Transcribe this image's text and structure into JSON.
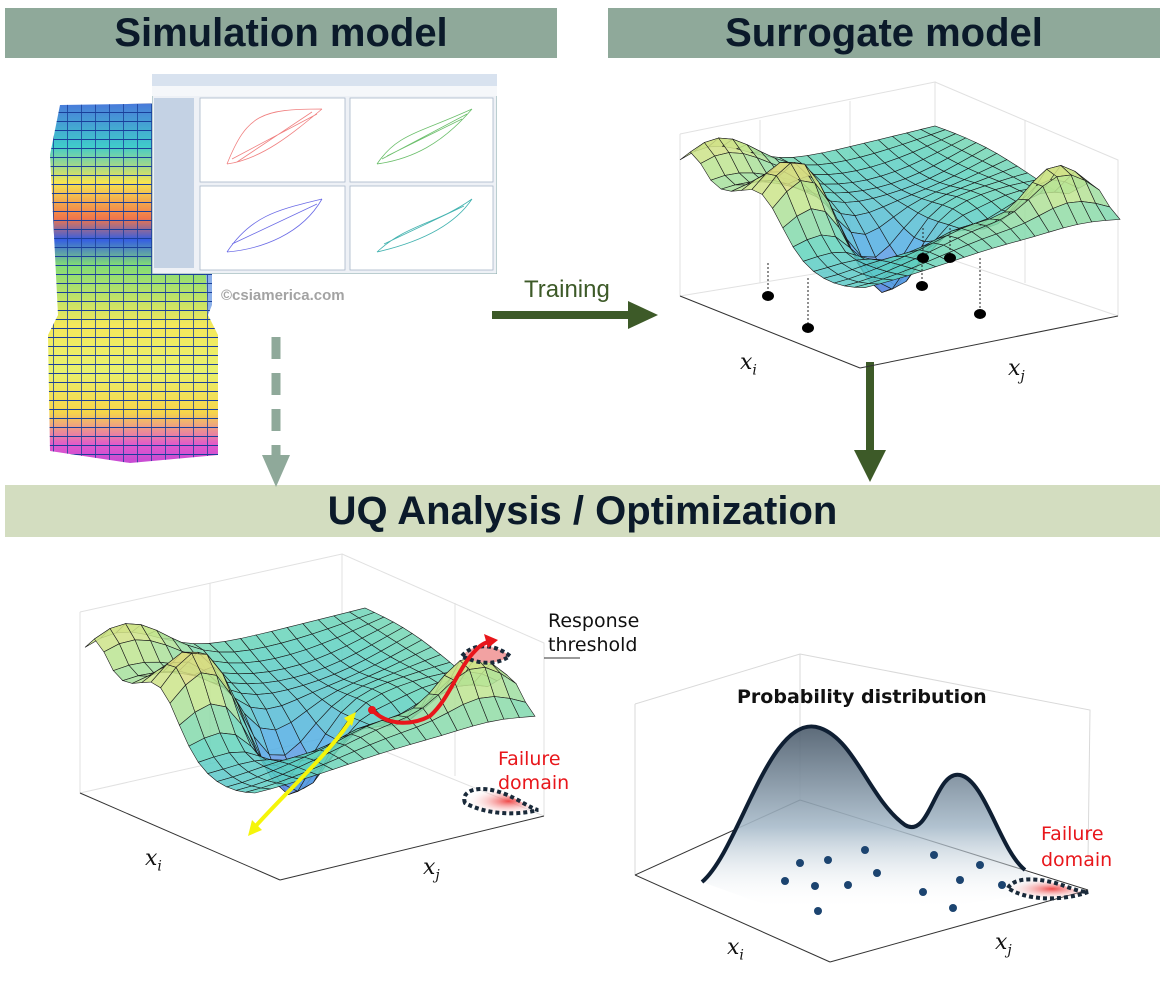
{
  "banners": {
    "simulation": "Simulation model",
    "surrogate": "Surrogate model",
    "uq": "UQ Analysis / Optimization"
  },
  "simulation": {
    "credit": "©csiamerica.com"
  },
  "training_label": "Training",
  "surrogate_axes": {
    "xi": "x",
    "xi_sub": "i",
    "xj": "x",
    "xj_sub": "j"
  },
  "uq_left": {
    "response_label": "Response threshold",
    "response_line1": "Response",
    "response_line2": "threshold",
    "failure_line1": "Failure",
    "failure_line2": "domain",
    "axes": {
      "xi": "x",
      "xi_sub": "i",
      "xj": "x",
      "xj_sub": "j"
    }
  },
  "uq_right": {
    "title": "Probability distribution",
    "failure_line1": "Failure",
    "failure_line2": "domain",
    "axes": {
      "xi": "x",
      "xi_sub": "i",
      "xj": "x",
      "xj_sub": "j"
    }
  },
  "colors": {
    "banner_dark": "#8fa99a",
    "banner_light": "#d3ddc0",
    "arrow_green": "#3d5a28",
    "arrow_gray": "#8fa99a",
    "failure_red": "#e8161b"
  }
}
